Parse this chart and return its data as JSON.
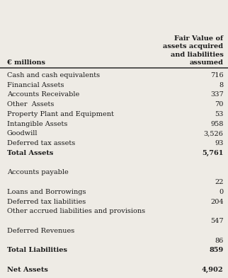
{
  "header_col1": "€ millions",
  "header_col2": "Fair Value of\nassets acquired\nand liabilities\nassumed",
  "rows": [
    {
      "label": "Cash and cash equivalents",
      "value": "716",
      "bold": false
    },
    {
      "label": "Financial Assets",
      "value": "8",
      "bold": false
    },
    {
      "label": "Accounts Receivable",
      "value": "337",
      "bold": false
    },
    {
      "label": "Other  Assets",
      "value": "70",
      "bold": false
    },
    {
      "label": "Property Plant and Equipment",
      "value": "53",
      "bold": false
    },
    {
      "label": "Intangible Assets",
      "value": "958",
      "bold": false
    },
    {
      "label": "Goodwill",
      "value": "3,526",
      "bold": false
    },
    {
      "label": "Deferred tax assets",
      "value": "93",
      "bold": false
    },
    {
      "label": "Total Assets",
      "value": "5,761",
      "bold": true
    },
    {
      "label": "",
      "value": "",
      "bold": false
    },
    {
      "label": "Accounts payable",
      "value": "",
      "bold": false
    },
    {
      "label": "",
      "value": "22",
      "bold": false
    },
    {
      "label": "Loans and Borrowings",
      "value": "0",
      "bold": false
    },
    {
      "label": "Deferred tax liabilities",
      "value": "204",
      "bold": false
    },
    {
      "label": "Other accrued liabilities and provisions",
      "value": "",
      "bold": false
    },
    {
      "label": "",
      "value": "547",
      "bold": false
    },
    {
      "label": "Deferred Revenues",
      "value": "",
      "bold": false
    },
    {
      "label": "",
      "value": "86",
      "bold": false
    },
    {
      "label": "Total Liabilities",
      "value": "859",
      "bold": true
    },
    {
      "label": "",
      "value": "",
      "bold": false
    },
    {
      "label": "Net Assets",
      "value": "4,902",
      "bold": true
    }
  ],
  "bg_color": "#eeebe5",
  "font_color": "#1a1a1a",
  "line_color": "#2a2a2a",
  "font_size": 7.0,
  "header_font_size": 7.0
}
